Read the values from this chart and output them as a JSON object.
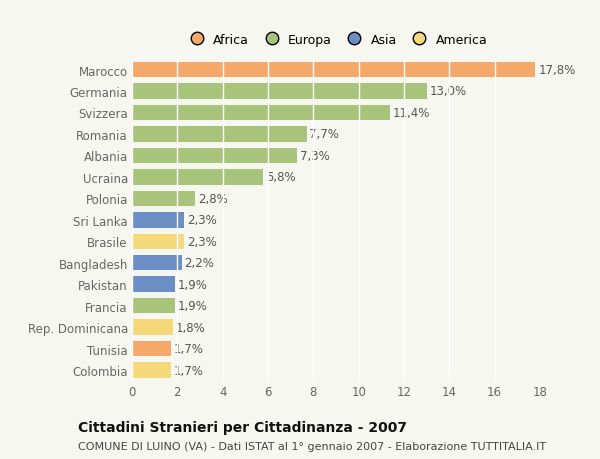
{
  "categories": [
    "Colombia",
    "Tunisia",
    "Rep. Dominicana",
    "Francia",
    "Pakistan",
    "Bangladesh",
    "Brasile",
    "Sri Lanka",
    "Polonia",
    "Ucraina",
    "Albania",
    "Romania",
    "Svizzera",
    "Germania",
    "Marocco"
  ],
  "values": [
    1.7,
    1.7,
    1.8,
    1.9,
    1.9,
    2.2,
    2.3,
    2.3,
    2.8,
    5.8,
    7.3,
    7.7,
    11.4,
    13.0,
    17.8
  ],
  "colors": [
    "#f5d87a",
    "#f4a96a",
    "#f5d87a",
    "#a8c47a",
    "#6b8ec4",
    "#6b8ec4",
    "#f5d87a",
    "#6b8ec4",
    "#a8c47a",
    "#a8c47a",
    "#a8c47a",
    "#a8c47a",
    "#a8c47a",
    "#a8c47a",
    "#f4a96a"
  ],
  "labels": [
    "1,7%",
    "1,7%",
    "1,8%",
    "1,9%",
    "1,9%",
    "2,2%",
    "2,3%",
    "2,3%",
    "2,8%",
    "5,8%",
    "7,3%",
    "7,7%",
    "11,4%",
    "13,0%",
    "17,8%"
  ],
  "legend": [
    {
      "label": "Africa",
      "color": "#f4a96a"
    },
    {
      "label": "Europa",
      "color": "#a8c47a"
    },
    {
      "label": "Asia",
      "color": "#6b8ec4"
    },
    {
      "label": "America",
      "color": "#f5d87a"
    }
  ],
  "xlim": [
    0,
    18
  ],
  "xticks": [
    0,
    2,
    4,
    6,
    8,
    10,
    12,
    14,
    16,
    18
  ],
  "title": "Cittadini Stranieri per Cittadinanza - 2007",
  "subtitle": "COMUNE DI LUINO (VA) - Dati ISTAT al 1° gennaio 2007 - Elaborazione TUTTITALIA.IT",
  "background_color": "#f7f7f2",
  "grid_color": "#ffffff",
  "bar_height": 0.72,
  "label_fontsize": 8.5,
  "tick_fontsize": 8.5,
  "title_fontsize": 10,
  "subtitle_fontsize": 8,
  "legend_fontsize": 9
}
